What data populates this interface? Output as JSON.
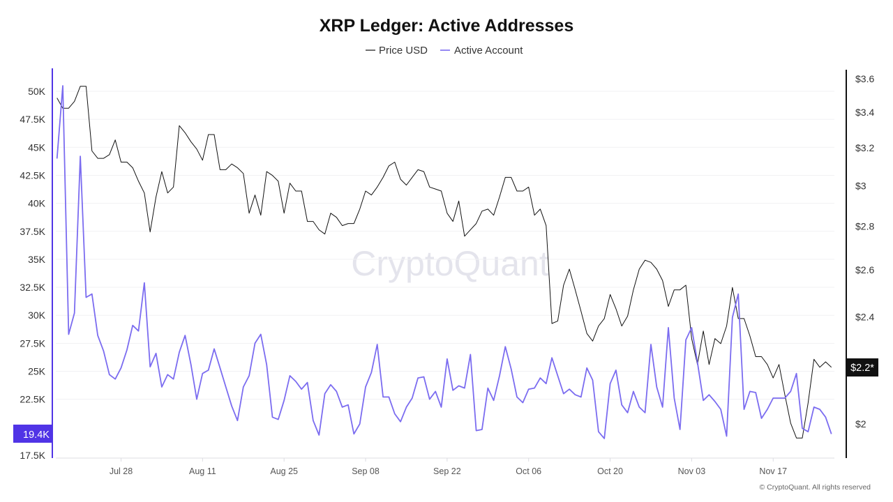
{
  "chart_data": {
    "type": "line",
    "title": "XRP Ledger: Active Addresses",
    "legend_position": "top-center",
    "grid": true,
    "watermark": "CryptoQuant",
    "footer": "© CryptoQuant. All rights reserved",
    "x": [
      "Jul 17",
      "Jul 18",
      "Jul 19",
      "Jul 20",
      "Jul 21",
      "Jul 22",
      "Jul 23",
      "Jul 24",
      "Jul 25",
      "Jul 26",
      "Jul 27",
      "Jul 28",
      "Jul 29",
      "Jul 30",
      "Jul 31",
      "Aug 01",
      "Aug 02",
      "Aug 03",
      "Aug 04",
      "Aug 05",
      "Aug 06",
      "Aug 07",
      "Aug 08",
      "Aug 09",
      "Aug 10",
      "Aug 11",
      "Aug 12",
      "Aug 13",
      "Aug 14",
      "Aug 15",
      "Aug 16",
      "Aug 17",
      "Aug 18",
      "Aug 19",
      "Aug 20",
      "Aug 21",
      "Aug 22",
      "Aug 23",
      "Aug 24",
      "Aug 25",
      "Aug 26",
      "Aug 27",
      "Aug 28",
      "Aug 29",
      "Aug 30",
      "Aug 31",
      "Sep 01",
      "Sep 02",
      "Sep 03",
      "Sep 04",
      "Sep 05",
      "Sep 06",
      "Sep 07",
      "Sep 08",
      "Sep 09",
      "Sep 10",
      "Sep 11",
      "Sep 12",
      "Sep 13",
      "Sep 14",
      "Sep 15",
      "Sep 16",
      "Sep 17",
      "Sep 18",
      "Sep 19",
      "Sep 20",
      "Sep 21",
      "Sep 22",
      "Sep 23",
      "Sep 24",
      "Sep 25",
      "Sep 26",
      "Sep 27",
      "Sep 28",
      "Sep 29",
      "Sep 30",
      "Oct 01",
      "Oct 02",
      "Oct 03",
      "Oct 04",
      "Oct 05",
      "Oct 06",
      "Oct 07",
      "Oct 08",
      "Oct 09",
      "Oct 10",
      "Oct 11",
      "Oct 12",
      "Oct 13",
      "Oct 14",
      "Oct 15",
      "Oct 16",
      "Oct 17",
      "Oct 18",
      "Oct 19",
      "Oct 20",
      "Oct 21",
      "Oct 22",
      "Oct 23",
      "Oct 24",
      "Oct 25",
      "Oct 26",
      "Oct 27",
      "Oct 28",
      "Oct 29",
      "Oct 30",
      "Oct 31",
      "Nov 01",
      "Nov 02",
      "Nov 03",
      "Nov 04",
      "Nov 05",
      "Nov 06",
      "Nov 07",
      "Nov 08",
      "Nov 09",
      "Nov 10",
      "Nov 11",
      "Nov 12",
      "Nov 13",
      "Nov 14",
      "Nov 15",
      "Nov 16",
      "Nov 17",
      "Nov 18",
      "Nov 19",
      "Nov 20",
      "Nov 21",
      "Nov 22",
      "Nov 23",
      "Nov 24",
      "Nov 25",
      "Nov 26",
      "Nov 27"
    ],
    "x_ticks": [
      "Jul 28",
      "Aug 11",
      "Aug 25",
      "Sep 08",
      "Sep 22",
      "Oct 06",
      "Oct 20",
      "Nov 03",
      "Nov 17"
    ],
    "y_left": {
      "ticks": [
        "50K",
        "47.5K",
        "45K",
        "42.5K",
        "40K",
        "37.5K",
        "35K",
        "32.5K",
        "30K",
        "27.5K",
        "25K",
        "22.5K",
        "17.5K"
      ],
      "tick_values": [
        50000,
        47500,
        45000,
        42500,
        40000,
        37500,
        35000,
        32500,
        30000,
        27500,
        25000,
        22500,
        17500
      ],
      "range": [
        17500,
        52000
      ],
      "current_label": "19.4K",
      "color": "#5034e6"
    },
    "y_right": {
      "ticks": [
        "$3.6",
        "$3.4",
        "$3.2",
        "$3",
        "$2.8",
        "$2.6",
        "$2.4",
        "$2"
      ],
      "tick_values": [
        3.6,
        3.4,
        3.2,
        3.0,
        2.8,
        2.6,
        2.4,
        2.0
      ],
      "scale": "log",
      "range": [
        1.88,
        3.6
      ],
      "current_label": "$2.2*",
      "color": "#111111"
    },
    "series": [
      {
        "name": "Price USD",
        "axis": "right",
        "color": "#111111",
        "values": [
          3.48,
          3.42,
          3.42,
          3.46,
          3.55,
          3.55,
          3.18,
          3.14,
          3.14,
          3.16,
          3.24,
          3.12,
          3.12,
          3.09,
          3.02,
          2.96,
          2.77,
          2.94,
          3.07,
          2.96,
          2.99,
          3.32,
          3.28,
          3.23,
          3.19,
          3.13,
          3.27,
          3.27,
          3.08,
          3.08,
          3.11,
          3.09,
          3.06,
          2.86,
          2.95,
          2.85,
          3.07,
          3.05,
          3.02,
          2.86,
          3.01,
          2.97,
          2.97,
          2.82,
          2.82,
          2.78,
          2.76,
          2.86,
          2.84,
          2.8,
          2.81,
          2.81,
          2.88,
          2.97,
          2.95,
          2.99,
          3.04,
          3.1,
          3.12,
          3.03,
          3.0,
          3.04,
          3.08,
          3.07,
          2.99,
          2.98,
          2.97,
          2.86,
          2.82,
          2.92,
          2.75,
          2.78,
          2.81,
          2.87,
          2.88,
          2.85,
          2.94,
          3.04,
          3.04,
          2.97,
          2.97,
          2.99,
          2.85,
          2.88,
          2.8,
          2.37,
          2.38,
          2.53,
          2.6,
          2.51,
          2.42,
          2.33,
          2.3,
          2.36,
          2.39,
          2.49,
          2.43,
          2.36,
          2.4,
          2.51,
          2.6,
          2.64,
          2.63,
          2.6,
          2.55,
          2.44,
          2.51,
          2.51,
          2.53,
          2.31,
          2.21,
          2.34,
          2.21,
          2.31,
          2.29,
          2.36,
          2.52,
          2.39,
          2.39,
          2.32,
          2.24,
          2.24,
          2.21,
          2.16,
          2.21,
          2.1,
          2.0,
          1.95,
          1.95,
          2.07,
          2.23,
          2.2,
          2.22,
          2.2
        ]
      },
      {
        "name": "Active Account",
        "axis": "left",
        "color": "#7b6cf0",
        "values": [
          44000,
          50500,
          28300,
          30200,
          44200,
          31600,
          31900,
          28200,
          26800,
          24700,
          24300,
          25300,
          26900,
          29100,
          28600,
          32900,
          25400,
          26600,
          23600,
          24700,
          24300,
          26700,
          28200,
          25600,
          22500,
          24800,
          25100,
          27000,
          25300,
          23600,
          21900,
          20600,
          23600,
          24600,
          27500,
          28300,
          25600,
          20900,
          20700,
          22400,
          24600,
          24100,
          23400,
          24000,
          20600,
          19300,
          23000,
          23800,
          23200,
          21800,
          22000,
          19400,
          20300,
          23600,
          24900,
          27400,
          22700,
          22700,
          21200,
          20500,
          21800,
          22600,
          24400,
          24500,
          22500,
          23200,
          21800,
          26100,
          23300,
          23700,
          23500,
          26500,
          19700,
          19800,
          23500,
          22400,
          24600,
          27200,
          25200,
          22700,
          22200,
          23400,
          23500,
          24400,
          23900,
          26200,
          24600,
          23000,
          23400,
          22900,
          22700,
          25300,
          24200,
          19600,
          19000,
          23900,
          25100,
          22000,
          21300,
          23200,
          21800,
          21300,
          27400,
          23600,
          21800,
          28900,
          22600,
          19800,
          27800,
          28900,
          25800,
          22400,
          22900,
          22300,
          21600,
          19200,
          29800,
          31900,
          21600,
          23200,
          23100,
          20800,
          21600,
          22600,
          22600,
          22600,
          23200,
          24800,
          19900,
          19600,
          21800,
          21600,
          20900,
          19400
        ]
      }
    ]
  }
}
